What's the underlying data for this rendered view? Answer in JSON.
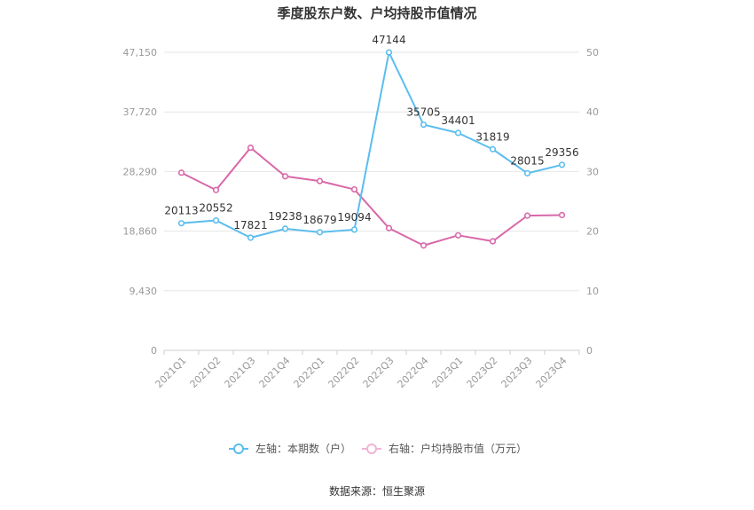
{
  "title": "季度股东户数、户均持股市值情况",
  "source": "数据来源：恒生聚源",
  "colors": {
    "left_series": "#5bbdee",
    "right_series": "#d868a8",
    "grid": "#e6e6e6",
    "axis_text": "#999999"
  },
  "legend": [
    {
      "label": "左轴：本期数（户）"
    },
    {
      "label": "右轴：户均持股市值（万元）"
    }
  ],
  "chart_data": {
    "type": "line",
    "title": "季度股东户数、户均持股市值情况",
    "categories": [
      "2021Q1",
      "2021Q2",
      "2021Q3",
      "2021Q4",
      "2022Q1",
      "2022Q2",
      "2022Q3",
      "2022Q4",
      "2023Q1",
      "2023Q2",
      "2023Q3",
      "2023Q4"
    ],
    "left_axis": {
      "ticks": [
        "0",
        "9,430",
        "18,860",
        "28,290",
        "37,720",
        "47,150"
      ],
      "ylim": [
        0,
        47150
      ]
    },
    "right_axis": {
      "ticks": [
        "0",
        "10",
        "20",
        "30",
        "40",
        "50"
      ],
      "ylim": [
        0,
        50
      ]
    },
    "series": [
      {
        "name": "左轴：本期数（户）",
        "axis": "left",
        "values": [
          20113,
          20552,
          17821,
          19238,
          18679,
          19094,
          47144,
          35705,
          34401,
          31819,
          28015,
          29356
        ],
        "labels": [
          "20113",
          "20552",
          "17821",
          "19238",
          "18679",
          "19094",
          "47144",
          "35705",
          "34401",
          "31819",
          "28015",
          "29356"
        ]
      },
      {
        "name": "右轴：户均持股市值（万元）",
        "axis": "right",
        "values": [
          29.8,
          26.9,
          34.0,
          29.2,
          28.4,
          27.0,
          20.5,
          17.6,
          19.3,
          18.3,
          22.6,
          22.7
        ]
      }
    ],
    "grid": true,
    "legend_position": "bottom"
  }
}
